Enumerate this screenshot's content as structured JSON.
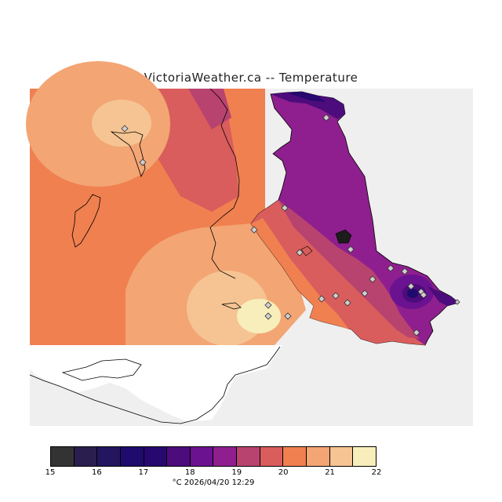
{
  "title": "VictoriaWeather.ca -- Temperature",
  "legend": {
    "colors": [
      "#333333",
      "#2a1e4e",
      "#24155f",
      "#1f0a6e",
      "#26086f",
      "#4c0c7c",
      "#6b1290",
      "#8f1f8e",
      "#b8436f",
      "#d95d5c",
      "#f08050",
      "#f3a574",
      "#f5c492",
      "#f7eebb"
    ],
    "ticks": [
      "15",
      "16",
      "17",
      "18",
      "19",
      "20",
      "21",
      "22"
    ]
  },
  "timestamp": "°C  2026/04/20 12:29",
  "stations_count": 21
}
